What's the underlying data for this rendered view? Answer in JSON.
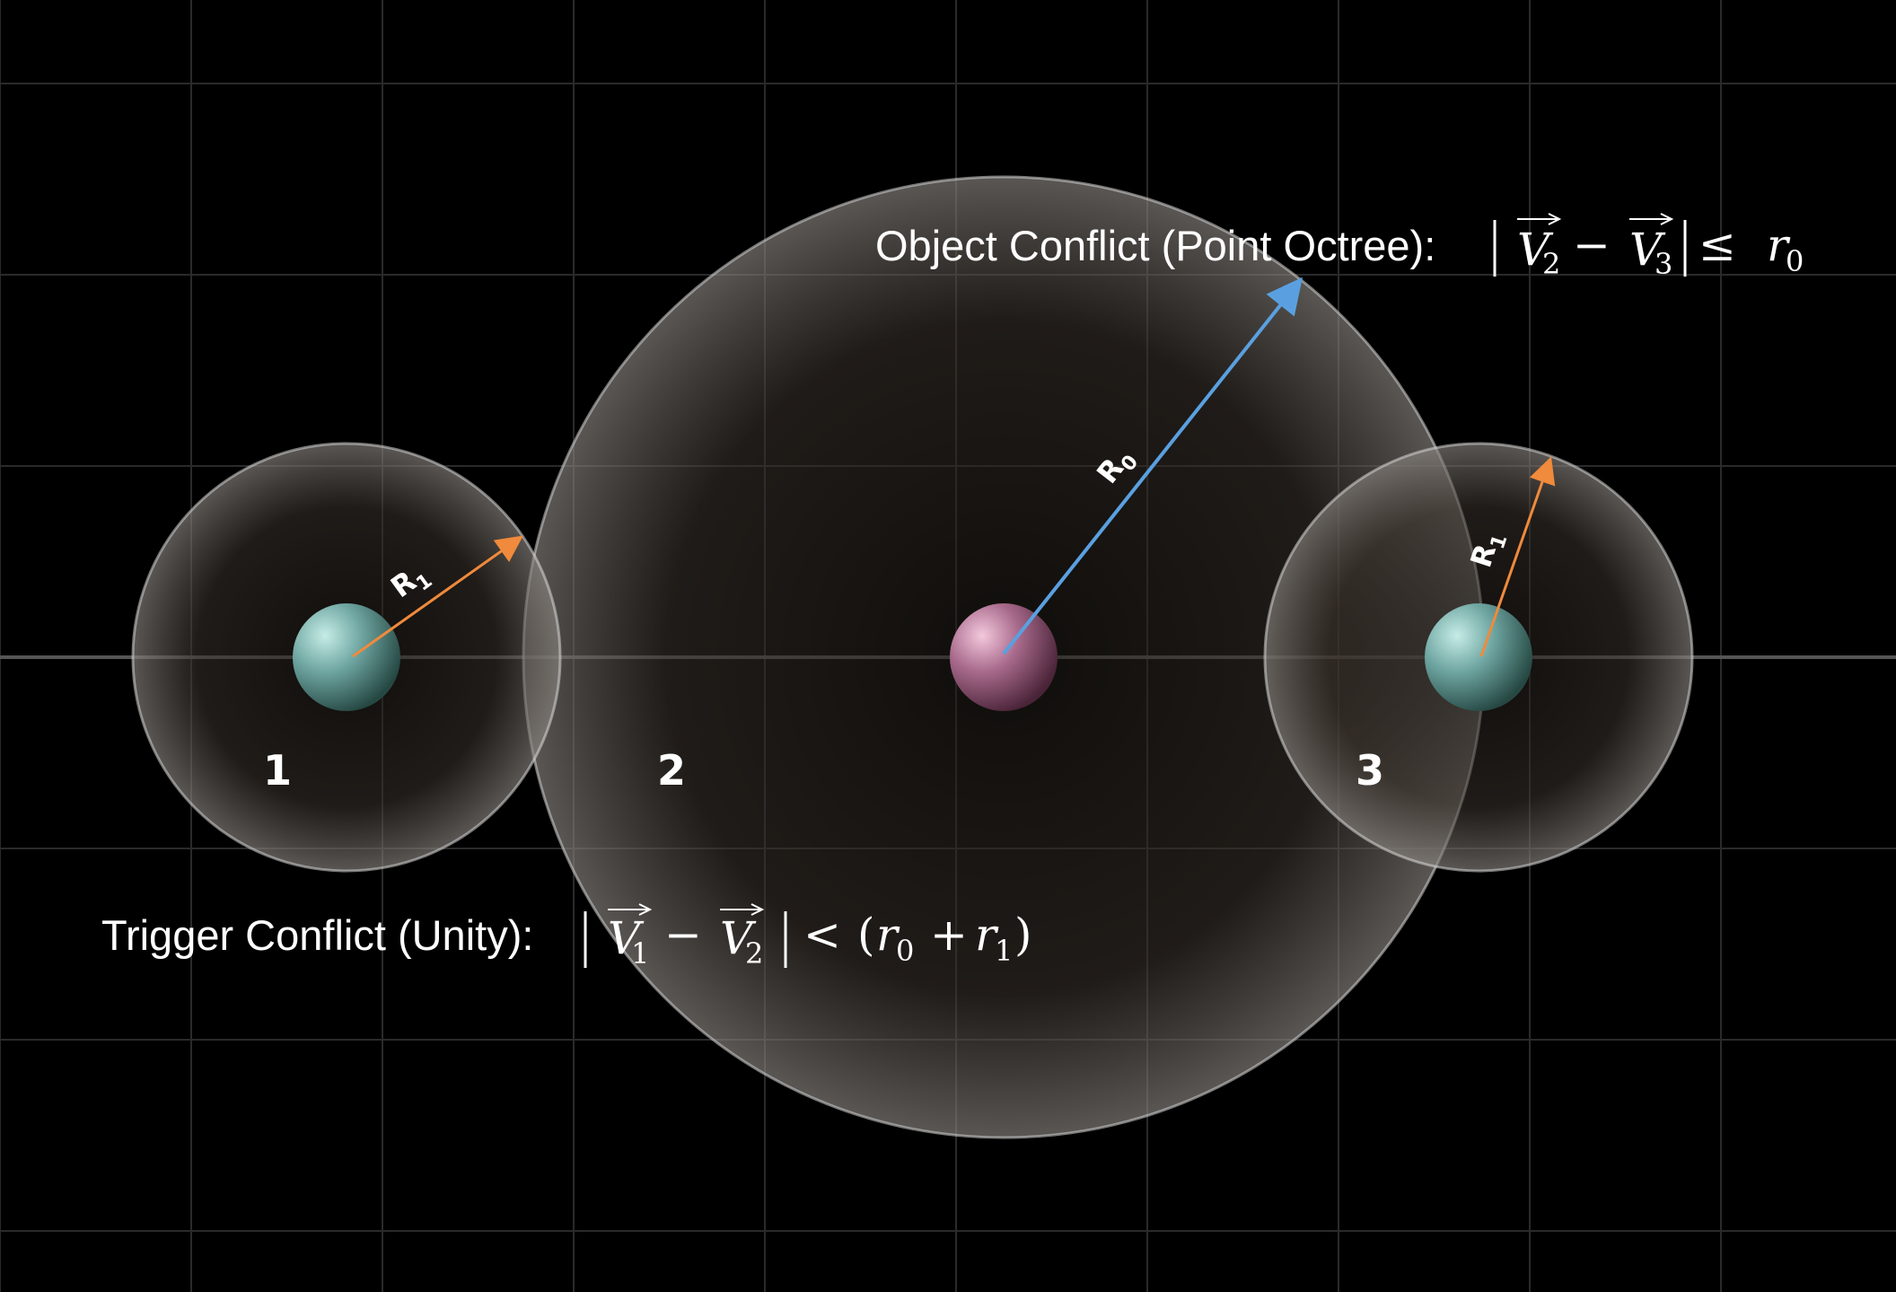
{
  "colors": {
    "background": "#000000",
    "grid": "#2a2a2a",
    "axis": "#555555",
    "bubble_fill": "#c8b8a8",
    "bubble_edge": "#e6e6e6",
    "sphere_teal": "#7fb3b0",
    "sphere_pink": "#c48aa8",
    "arrow_orange": "#f08a3c",
    "arrow_blue": "#5aa0e0",
    "text": "#ffffff"
  },
  "objects": [
    {
      "number": "1",
      "radius_label": "R",
      "radius_sub": "1",
      "sphere": "teal-sphere-icon"
    },
    {
      "number": "2",
      "radius_label": "R",
      "radius_sub": "0",
      "sphere": "pink-sphere-icon"
    },
    {
      "number": "3",
      "radius_label": "R",
      "radius_sub": "1",
      "sphere": "teal-sphere-icon"
    }
  ],
  "formulas": {
    "object_conflict": {
      "lead": "Object Conflict (Point Octree):",
      "v_a": "V",
      "v_a_sub": "2",
      "minus": "−",
      "v_b": "V",
      "v_b_sub": "3",
      "relation": "≤",
      "rhs": "r",
      "rhs_sub": "0"
    },
    "trigger_conflict": {
      "lead": "Trigger Conflict (Unity):",
      "v_a": "V",
      "v_a_sub": "1",
      "minus": "−",
      "v_b": "V",
      "v_b_sub": "2",
      "relation": "<",
      "open": "(",
      "r0": "r",
      "r0_sub": "0",
      "plus": "+",
      "r1": "r",
      "r1_sub": "1",
      "close": ")"
    }
  }
}
